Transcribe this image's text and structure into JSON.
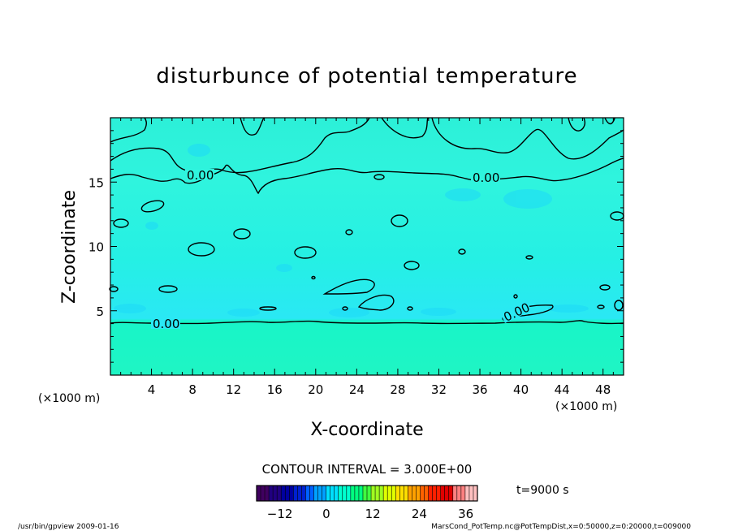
{
  "chart_data": {
    "type": "heatmap",
    "title": "disturbunce of potential temperature",
    "xlabel": "X-coordinate",
    "ylabel": "Z-coordinate",
    "x_unit": "(×1000 m)",
    "y_unit": "(×1000 m)",
    "xlim": [
      0,
      50
    ],
    "ylim": [
      0,
      20
    ],
    "x_ticks": [
      4,
      8,
      12,
      16,
      20,
      24,
      28,
      32,
      36,
      40,
      44,
      48
    ],
    "y_ticks": [
      5,
      10,
      15
    ],
    "contour_interval_label": "CONTOUR INTERVAL = 3.000E+00",
    "contour_labels": [
      {
        "text": "0.00",
        "x": 7.5,
        "z": 15.2
      },
      {
        "text": "0.00",
        "x": 36.5,
        "z": 15.2
      },
      {
        "text": "0.00",
        "x": 5.5,
        "z": 4.0
      },
      {
        "text": "0.00",
        "x": 39.5,
        "z": 4.8
      }
    ],
    "colorbar": {
      "ticks": [
        -12,
        0,
        12,
        24,
        36
      ],
      "range": [
        -18,
        39
      ],
      "colors": [
        "#400060",
        "#200080",
        "#0000a0",
        "#0020d0",
        "#0060ff",
        "#00a0ff",
        "#00e0ff",
        "#00ffd0",
        "#00ff80",
        "#40ff40",
        "#a0ff20",
        "#e0ff00",
        "#ffe000",
        "#ffa000",
        "#ff6000",
        "#ff2000",
        "#e00000",
        "#ff8080",
        "#ffc0c0"
      ]
    }
  },
  "time_label": "t=9000 s",
  "footer": {
    "left": "/usr/bin/gpview   2009-01-16",
    "right": "MarsCond_PotTemp.nc@PotTempDist,x=0:50000,z=0:20000,t=009000"
  }
}
